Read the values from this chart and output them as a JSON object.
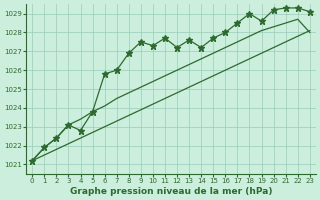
{
  "title": "Graphe pression niveau de la mer (hPa)",
  "bg_color": "#cceedd",
  "grid_color": "#99ccbb",
  "line_color": "#2d6a2d",
  "xlim": [
    -0.5,
    23.5
  ],
  "ylim": [
    1020.5,
    1029.5
  ],
  "yticks": [
    1021,
    1022,
    1023,
    1024,
    1025,
    1026,
    1027,
    1028,
    1029
  ],
  "xticks": [
    0,
    1,
    2,
    3,
    4,
    5,
    6,
    7,
    8,
    9,
    10,
    11,
    12,
    13,
    14,
    15,
    16,
    17,
    18,
    19,
    20,
    21,
    22,
    23
  ],
  "main_data": [
    1021.2,
    1021.9,
    1022.4,
    1023.1,
    1022.8,
    1023.8,
    1025.8,
    1026.0,
    1026.9,
    1027.5,
    1027.3,
    1027.7,
    1027.2,
    1027.6,
    1027.2,
    1027.7,
    1028.0,
    1028.5,
    1029.0,
    1028.6,
    1029.2,
    1029.3,
    1029.3,
    1029.1
  ],
  "trend_low": [
    1021.2,
    1021.5,
    1021.8,
    1022.1,
    1022.4,
    1022.7,
    1023.0,
    1023.3,
    1023.6,
    1023.9,
    1024.2,
    1024.5,
    1024.8,
    1025.1,
    1025.4,
    1025.7,
    1026.0,
    1026.3,
    1026.6,
    1026.9,
    1027.2,
    1027.5,
    1027.8,
    1028.1
  ],
  "trend_high": [
    1021.2,
    1021.9,
    1022.4,
    1023.1,
    1023.4,
    1023.8,
    1024.1,
    1024.5,
    1024.8,
    1025.1,
    1025.4,
    1025.7,
    1026.0,
    1026.3,
    1026.6,
    1026.9,
    1027.2,
    1027.5,
    1027.8,
    1028.1,
    1028.3,
    1028.5,
    1028.7,
    1028.0
  ]
}
